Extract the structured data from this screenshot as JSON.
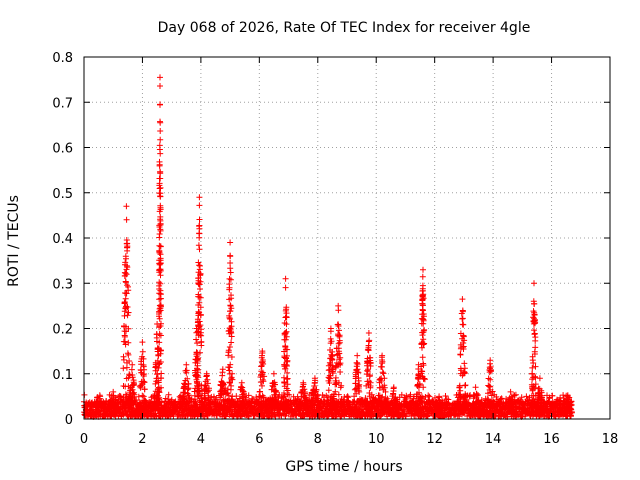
{
  "chart_data": {
    "type": "scatter",
    "title": "Day 068 of 2026, Rate Of TEC Index for receiver 4gle",
    "xlabel": "GPS time / hours",
    "ylabel": "ROTI / TECUs",
    "xlim": [
      0,
      18
    ],
    "ylim": [
      0,
      0.8
    ],
    "xticks": [
      0,
      2,
      4,
      6,
      8,
      10,
      12,
      14,
      16,
      18
    ],
    "yticks": [
      0,
      0.1,
      0.2,
      0.3,
      0.4,
      0.5,
      0.6,
      0.7,
      0.8
    ],
    "grid": true,
    "legend": "none",
    "marker": "+",
    "color": "#ff0000",
    "baseline": {
      "x_start": 0.0,
      "x_end": 16.7,
      "level_min": 0.005,
      "level_max": 0.04
    },
    "bursts": [
      {
        "center": 0.55,
        "half_width": 0.25,
        "peak": 0.05
      },
      {
        "center": 1.0,
        "half_width": 0.25,
        "peak": 0.06
      },
      {
        "center": 1.45,
        "half_width": 0.15,
        "peak": 0.47
      },
      {
        "center": 1.65,
        "half_width": 0.15,
        "peak": 0.12
      },
      {
        "center": 2.0,
        "half_width": 0.15,
        "peak": 0.17
      },
      {
        "center": 2.5,
        "half_width": 0.12,
        "peak": 0.21
      },
      {
        "center": 2.6,
        "half_width": 0.05,
        "peak": 0.755
      },
      {
        "center": 3.5,
        "half_width": 0.2,
        "peak": 0.12
      },
      {
        "center": 3.85,
        "half_width": 0.1,
        "peak": 0.2
      },
      {
        "center": 3.95,
        "half_width": 0.1,
        "peak": 0.49
      },
      {
        "center": 4.2,
        "half_width": 0.2,
        "peak": 0.1
      },
      {
        "center": 4.75,
        "half_width": 0.2,
        "peak": 0.11
      },
      {
        "center": 5.0,
        "half_width": 0.1,
        "peak": 0.39
      },
      {
        "center": 5.4,
        "half_width": 0.2,
        "peak": 0.08
      },
      {
        "center": 6.1,
        "half_width": 0.15,
        "peak": 0.15
      },
      {
        "center": 6.5,
        "half_width": 0.2,
        "peak": 0.1
      },
      {
        "center": 6.9,
        "half_width": 0.1,
        "peak": 0.31
      },
      {
        "center": 7.5,
        "half_width": 0.2,
        "peak": 0.08
      },
      {
        "center": 7.9,
        "half_width": 0.2,
        "peak": 0.09
      },
      {
        "center": 8.45,
        "half_width": 0.15,
        "peak": 0.2
      },
      {
        "center": 8.7,
        "half_width": 0.15,
        "peak": 0.25
      },
      {
        "center": 9.35,
        "half_width": 0.15,
        "peak": 0.14
      },
      {
        "center": 9.75,
        "half_width": 0.15,
        "peak": 0.19
      },
      {
        "center": 10.2,
        "half_width": 0.2,
        "peak": 0.14
      },
      {
        "center": 10.6,
        "half_width": 0.15,
        "peak": 0.07
      },
      {
        "center": 11.6,
        "half_width": 0.1,
        "peak": 0.33
      },
      {
        "center": 11.45,
        "half_width": 0.1,
        "peak": 0.12
      },
      {
        "center": 12.15,
        "half_width": 0.2,
        "peak": 0.05
      },
      {
        "center": 12.95,
        "half_width": 0.15,
        "peak": 0.265
      },
      {
        "center": 13.4,
        "half_width": 0.2,
        "peak": 0.07
      },
      {
        "center": 13.9,
        "half_width": 0.15,
        "peak": 0.13
      },
      {
        "center": 14.6,
        "half_width": 0.2,
        "peak": 0.06
      },
      {
        "center": 15.4,
        "half_width": 0.1,
        "peak": 0.3
      },
      {
        "center": 15.6,
        "half_width": 0.15,
        "peak": 0.09
      },
      {
        "center": 16.55,
        "half_width": 0.15,
        "peak": 0.05
      }
    ]
  }
}
